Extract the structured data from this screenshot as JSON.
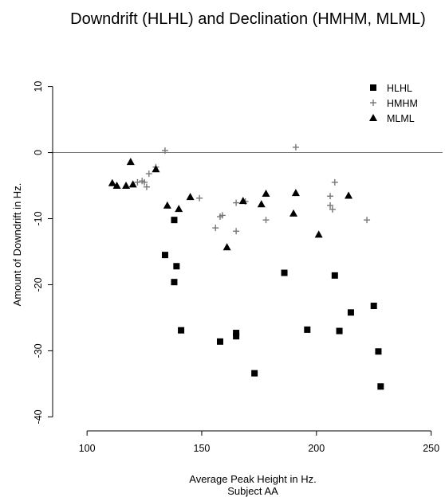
{
  "chart_data": {
    "type": "scatter",
    "title": "Downdrift (HLHL) and Declination (HMHM, MLML)",
    "xlabel": "Average Peak Height in Hz.",
    "xlabel_sub": "Subject AA",
    "ylabel": "Amount of Downdrift in Hz.",
    "xlim": [
      85,
      255
    ],
    "ylim": [
      -42,
      12
    ],
    "xticks": [
      100,
      150,
      200,
      250
    ],
    "yticks": [
      10,
      0,
      -10,
      -20,
      -30,
      -40
    ],
    "reference_line_y": 0,
    "grid": false,
    "legend_position": "top-right",
    "series": [
      {
        "name": "HLHL",
        "marker": "square",
        "points": [
          [
            134,
            -15.5
          ],
          [
            138,
            -10.2
          ],
          [
            139,
            -17.2
          ],
          [
            138,
            -19.6
          ],
          [
            141,
            -26.9
          ],
          [
            158,
            -28.6
          ],
          [
            165,
            -27.3
          ],
          [
            165,
            -27.8
          ],
          [
            173,
            -33.4
          ],
          [
            186,
            -18.2
          ],
          [
            196,
            -26.8
          ],
          [
            208,
            -18.6
          ],
          [
            210,
            -27.0
          ],
          [
            215,
            -24.2
          ],
          [
            225,
            -23.2
          ],
          [
            227,
            -30.1
          ],
          [
            228,
            -35.4
          ]
        ]
      },
      {
        "name": "HMHM",
        "marker": "plus",
        "points": [
          [
            122,
            -4.5
          ],
          [
            124,
            -4.3
          ],
          [
            125,
            -4.5
          ],
          [
            126,
            -5.2
          ],
          [
            127,
            -3.2
          ],
          [
            130,
            -2.2
          ],
          [
            134,
            0.3
          ],
          [
            149,
            -6.9
          ],
          [
            156,
            -11.4
          ],
          [
            158,
            -9.7
          ],
          [
            159,
            -9.5
          ],
          [
            165,
            -7.6
          ],
          [
            165,
            -11.9
          ],
          [
            169,
            -7.4
          ],
          [
            178,
            -10.2
          ],
          [
            191,
            0.8
          ],
          [
            206,
            -8.0
          ],
          [
            206,
            -6.6
          ],
          [
            207,
            -8.6
          ],
          [
            208,
            -4.5
          ],
          [
            222,
            -10.2
          ]
        ]
      },
      {
        "name": "MLML",
        "marker": "triangle",
        "points": [
          [
            111,
            -4.6
          ],
          [
            113,
            -5.0
          ],
          [
            117,
            -5.0
          ],
          [
            119,
            -1.4
          ],
          [
            120,
            -4.8
          ],
          [
            130,
            -2.5
          ],
          [
            135,
            -8.0
          ],
          [
            140,
            -8.5
          ],
          [
            145,
            -6.7
          ],
          [
            161,
            -14.3
          ],
          [
            168,
            -7.3
          ],
          [
            176,
            -7.8
          ],
          [
            178,
            -6.2
          ],
          [
            190,
            -9.2
          ],
          [
            191,
            -6.1
          ],
          [
            201,
            -12.4
          ],
          [
            214,
            -6.5
          ]
        ]
      }
    ]
  }
}
